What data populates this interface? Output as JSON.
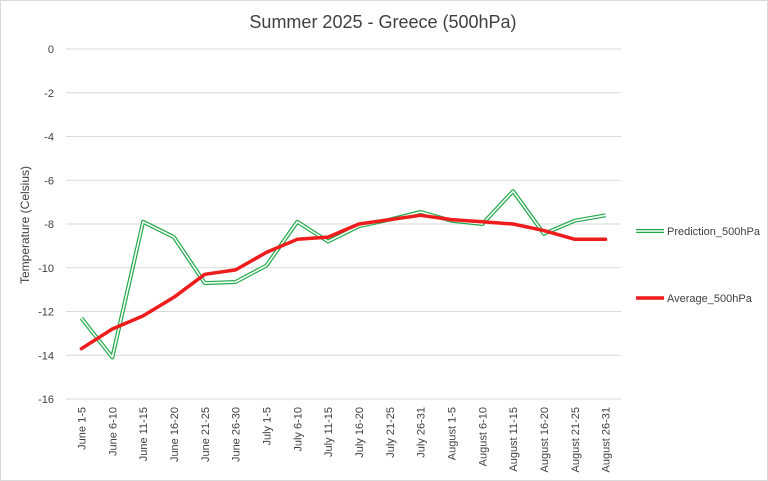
{
  "chart_data": {
    "type": "line",
    "title": "Summer 2025 - Greece (500hPa)",
    "xlabel": "",
    "ylabel": "Temperature  (Celsius)",
    "ylim": [
      -16,
      0
    ],
    "yticks": [
      0,
      -2,
      -4,
      -6,
      -8,
      -10,
      -12,
      -14,
      -16
    ],
    "grid": true,
    "legend": "right",
    "categories": [
      "June 1-5",
      "June 6-10",
      "June 11-15",
      "June 16-20",
      "June 21-25",
      "June 26-30",
      "July 1-5",
      "July 6-10",
      "July 11-15",
      "July 16-20",
      "July 21-25",
      "July 26-31",
      "August 1-5",
      "August 6-10",
      "August 11-15",
      "August 16-20",
      "August 21-25",
      "August 26-31"
    ],
    "series": [
      {
        "name": "Prediction_500hPa",
        "color": "#21a84a",
        "style": "double-line",
        "values": [
          -12.3,
          -14.1,
          -7.9,
          -8.6,
          -10.7,
          -10.65,
          -9.9,
          -7.9,
          -8.8,
          -8.1,
          -7.8,
          -7.45,
          -7.85,
          -8.0,
          -6.5,
          -8.45,
          -7.85,
          -7.6
        ]
      },
      {
        "name": "Average_500hPa",
        "color": "#ee1c1c",
        "style": "solid",
        "values": [
          -13.7,
          -12.8,
          -12.2,
          -11.35,
          -10.3,
          -10.1,
          -9.3,
          -8.7,
          -8.6,
          -8.0,
          -7.8,
          -7.6,
          -7.8,
          -7.9,
          -8.0,
          -8.3,
          -8.7,
          -8.7
        ]
      }
    ]
  }
}
